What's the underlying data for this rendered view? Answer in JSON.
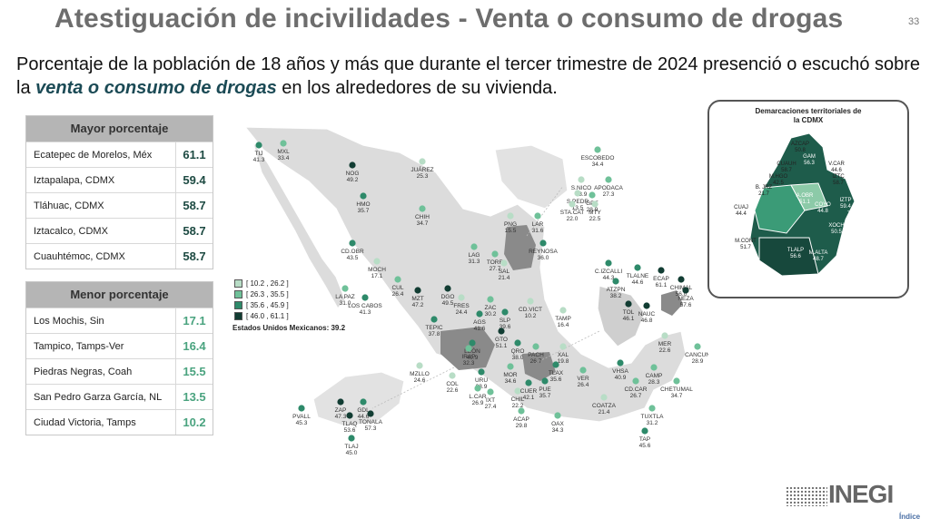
{
  "title": "Atestiguación de incivilidades - Venta o consumo de drogas",
  "page_number": "33",
  "subtitle": {
    "before": "Porcentaje de la población de 18 años y más que durante el tercer trimestre de 2024 presenció o escuchó sobre la ",
    "highlight": "venta o consumo de drogas",
    "after": " en los alrededores de su vivienda."
  },
  "top_table": {
    "header": "Mayor porcentaje",
    "rows": [
      {
        "name": "Ecatepec de Morelos, Méx",
        "value": "61.1"
      },
      {
        "name": "Iztapalapa, CDMX",
        "value": "59.4"
      },
      {
        "name": "Tláhuac, CDMX",
        "value": "58.7"
      },
      {
        "name": "Iztacalco, CDMX",
        "value": "58.7"
      },
      {
        "name": "Cuauhtémoc, CDMX",
        "value": "58.7"
      }
    ]
  },
  "bottom_table": {
    "header": "Menor porcentaje",
    "rows": [
      {
        "name": "Los Mochis, Sin",
        "value": "17.1"
      },
      {
        "name": "Tampico, Tamps-Ver",
        "value": "16.4"
      },
      {
        "name": "Piedras Negras, Coah",
        "value": "15.5"
      },
      {
        "name": "San Pedro Garza García, NL",
        "value": "13.5"
      },
      {
        "name": "Ciudad Victoria, Tamps",
        "value": "10.2"
      }
    ]
  },
  "legend": [
    {
      "label": "[ 10.2 , 26.2 ]",
      "color": "#b8ddc6"
    },
    {
      "label": "[ 26.3 , 35.5 ]",
      "color": "#6fc199"
    },
    {
      "label": "[ 35.6 , 45.9 ]",
      "color": "#2e8a6a"
    },
    {
      "label": "[ 46.0 , 61.1 ]",
      "color": "#123d33"
    }
  ],
  "national": "Estados Unidos Mexicanos:  39.2",
  "cities": [
    {
      "name": "TIJ",
      "value": "41.3"
    },
    {
      "name": "MXL",
      "value": "33.4"
    },
    {
      "name": "NOG",
      "value": "49.2"
    },
    {
      "name": "JUÁREZ",
      "value": "25.3"
    },
    {
      "name": "HMO",
      "value": "35.7"
    },
    {
      "name": "CHIH",
      "value": "34.7"
    },
    {
      "name": "CD.OBR",
      "value": "43.5"
    },
    {
      "name": "MOCH",
      "value": "17.1"
    },
    {
      "name": "LA PAZ",
      "value": "31.0"
    },
    {
      "name": "LOS CABOS",
      "value": "41.3"
    },
    {
      "name": "CUL",
      "value": "26.4"
    },
    {
      "name": "MZT",
      "value": "47.2"
    },
    {
      "name": "DGO",
      "value": "49.5"
    },
    {
      "name": "LAG",
      "value": "31.3"
    },
    {
      "name": "TORR",
      "value": "27.7"
    },
    {
      "name": "SAL",
      "value": "21.4"
    },
    {
      "name": "PNG",
      "value": "15.5"
    },
    {
      "name": "LAR",
      "value": "31.6"
    },
    {
      "name": "REYNOSA",
      "value": "36.0"
    },
    {
      "name": "ESCOBEDO",
      "value": "34.4"
    },
    {
      "name": "S.NICO",
      "value": "18.9"
    },
    {
      "name": "APODACA",
      "value": "27.3"
    },
    {
      "name": "GPE",
      "value": "28.9"
    },
    {
      "name": "S.PEDR",
      "value": "13.5"
    },
    {
      "name": "MTY",
      "value": "22.5"
    },
    {
      "name": "STA.CAT",
      "value": "22.0"
    },
    {
      "name": "FRES",
      "value": "24.4"
    },
    {
      "name": "ZAC",
      "value": "30.2"
    },
    {
      "name": "CD.VICT",
      "value": "10.2"
    },
    {
      "name": "TEPIC",
      "value": "37.8"
    },
    {
      "name": "AGS",
      "value": "41.6"
    },
    {
      "name": "SLP",
      "value": "39.6"
    },
    {
      "name": "TAMP",
      "value": "16.4"
    },
    {
      "name": "GTO",
      "value": "51.1"
    },
    {
      "name": "LEÓN",
      "value": "40.9"
    },
    {
      "name": "IRAP",
      "value": "32.3"
    },
    {
      "name": "QRO",
      "value": "38.0"
    },
    {
      "name": "PACH",
      "value": "26.7"
    },
    {
      "name": "XAL",
      "value": "19.8"
    },
    {
      "name": "TLAX",
      "value": "35.6"
    },
    {
      "name": "MOR",
      "value": "34.6"
    },
    {
      "name": "VER",
      "value": "26.4"
    },
    {
      "name": "URU",
      "value": "38.9"
    },
    {
      "name": "PUE",
      "value": "35.7"
    },
    {
      "name": "MZLLO",
      "value": "24.6"
    },
    {
      "name": "COL",
      "value": "22.6"
    },
    {
      "name": "L.CAR",
      "value": "26.9"
    },
    {
      "name": "IXT",
      "value": "27.4"
    },
    {
      "name": "CHIL",
      "value": "22.2"
    },
    {
      "name": "CUER",
      "value": "42.1"
    },
    {
      "name": "ACAP",
      "value": "29.8"
    },
    {
      "name": "OAX",
      "value": "34.3"
    },
    {
      "name": "VHSA",
      "value": "40.9"
    },
    {
      "name": "COATZA",
      "value": "21.4"
    },
    {
      "name": "CD.CAR",
      "value": "26.7"
    },
    {
      "name": "CAMP",
      "value": "28.3"
    },
    {
      "name": "MER",
      "value": "22.6"
    },
    {
      "name": "CANCUN",
      "value": "28.9"
    },
    {
      "name": "CHETUMAL",
      "value": "34.7"
    },
    {
      "name": "TUXTLA",
      "value": "31.2"
    },
    {
      "name": "TAP",
      "value": "45.6"
    },
    {
      "name": "C.IZCALLI",
      "value": "44.3"
    },
    {
      "name": "ATZPN",
      "value": "38.2"
    },
    {
      "name": "TLALNE",
      "value": "44.6"
    },
    {
      "name": "ECAP",
      "value": "61.1"
    },
    {
      "name": "CHIMAL",
      "value": "56.0"
    },
    {
      "name": "NEZA",
      "value": "57.6"
    },
    {
      "name": "TOL",
      "value": "46.1"
    },
    {
      "name": "NAUC",
      "value": "46.8"
    },
    {
      "name": "ZAP",
      "value": "47.3"
    },
    {
      "name": "GDL",
      "value": "44.6"
    },
    {
      "name": "TLAQ",
      "value": "53.6"
    },
    {
      "name": "TONALA",
      "value": "57.3"
    },
    {
      "name": "PVALL",
      "value": "45.3"
    },
    {
      "name": "TLAJ",
      "value": "45.0"
    }
  ],
  "cdmx": {
    "title_line1": "Demarcaciones territoriales de",
    "title_line2": "la CDMX",
    "boroughs": [
      {
        "name": "AZCAP",
        "value": "50.8"
      },
      {
        "name": "GAM",
        "value": "56.3"
      },
      {
        "name": "CUAUH",
        "value": "58.7"
      },
      {
        "name": "V.CAR",
        "value": "44.6"
      },
      {
        "name": "M.HGO",
        "value": "42.5"
      },
      {
        "name": "IZTC",
        "value": "58.7"
      },
      {
        "name": "B. JRZ",
        "value": "21.7"
      },
      {
        "name": "A.OBR",
        "value": "51.1"
      },
      {
        "name": "COYO",
        "value": "44.8"
      },
      {
        "name": "IZTP",
        "value": "59.4"
      },
      {
        "name": "CUAJ",
        "value": "44.4"
      },
      {
        "name": "TLHC",
        "value": "58.7"
      },
      {
        "name": "XOCH",
        "value": "50.5"
      },
      {
        "name": "M.CONT",
        "value": "51.7"
      },
      {
        "name": "TLALP",
        "value": "56.6"
      },
      {
        "name": "M.ALTA",
        "value": "48.7"
      }
    ]
  },
  "logo": "INEGI",
  "index_link": "Índice"
}
